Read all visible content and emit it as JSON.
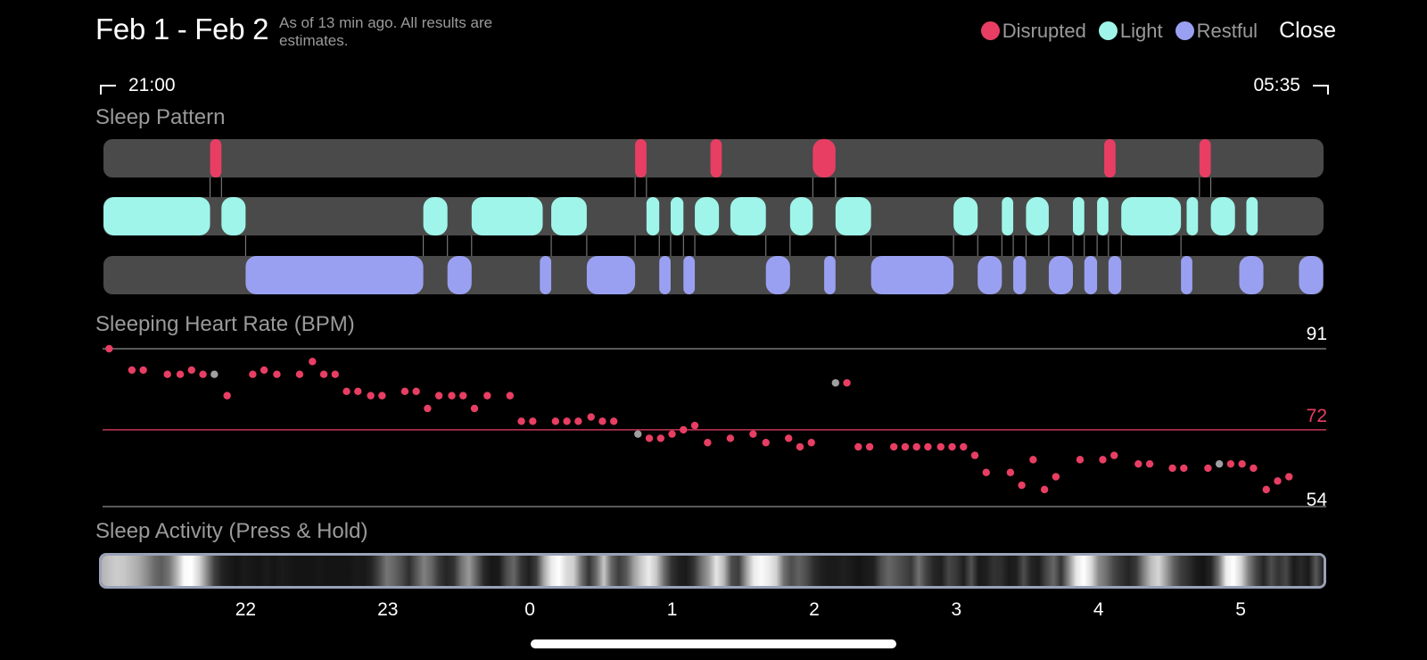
{
  "header": {
    "title": "Feb 1 - Feb 2",
    "subtitle": "As of 13 min ago. All results are estimates.",
    "close_label": "Close"
  },
  "legend": [
    {
      "label": "Disrupted",
      "color": "#e83e63"
    },
    {
      "label": "Light",
      "color": "#9ff5e9"
    },
    {
      "label": "Restful",
      "color": "#9aa0f1"
    }
  ],
  "time_range": {
    "start": "21:00",
    "end": "05:35"
  },
  "sections": {
    "pattern": "Sleep Pattern",
    "heart_rate": "Sleeping Heart Rate (BPM)",
    "activity": "Sleep Activity (Press & Hold)"
  },
  "colors": {
    "track": "#4a4a4a",
    "disrupted": "#e83e63",
    "light": "#9ff5e9",
    "restful": "#9aa0f1",
    "hr_dot": "#e83e63",
    "hr_dot_alt": "#a0a0a0",
    "avg_line": "#e83e63"
  },
  "sleep_pattern": {
    "time_start_h": 21.0,
    "time_end_h": 29.583,
    "disrupted": [
      [
        21.75,
        21.83
      ],
      [
        24.74,
        24.82
      ],
      [
        25.27,
        25.35
      ],
      [
        25.99,
        26.15
      ],
      [
        28.04,
        28.12
      ],
      [
        28.71,
        28.79
      ]
    ],
    "light": [
      [
        21.0,
        21.75
      ],
      [
        21.83,
        22.0
      ],
      [
        23.25,
        23.42
      ],
      [
        23.59,
        24.09
      ],
      [
        24.15,
        24.4
      ],
      [
        24.82,
        24.91
      ],
      [
        24.99,
        25.08
      ],
      [
        25.16,
        25.33
      ],
      [
        25.41,
        25.66
      ],
      [
        25.83,
        25.99
      ],
      [
        26.15,
        26.4
      ],
      [
        26.98,
        27.15
      ],
      [
        27.32,
        27.4
      ],
      [
        27.49,
        27.65
      ],
      [
        27.82,
        27.9
      ],
      [
        27.99,
        28.07
      ],
      [
        28.16,
        28.58
      ],
      [
        28.62,
        28.7
      ],
      [
        28.79,
        28.96
      ],
      [
        29.04,
        29.12
      ]
    ],
    "restful": [
      [
        22.0,
        23.25
      ],
      [
        23.42,
        23.59
      ],
      [
        24.07,
        24.15
      ],
      [
        24.4,
        24.74
      ],
      [
        24.91,
        24.99
      ],
      [
        25.08,
        25.16
      ],
      [
        25.66,
        25.83
      ],
      [
        26.07,
        26.15
      ],
      [
        26.4,
        26.98
      ],
      [
        27.15,
        27.32
      ],
      [
        27.4,
        27.49
      ],
      [
        27.65,
        27.82
      ],
      [
        27.9,
        27.99
      ],
      [
        28.07,
        28.16
      ],
      [
        28.58,
        28.66
      ],
      [
        28.99,
        29.16
      ],
      [
        29.41,
        29.58
      ]
    ]
  },
  "heart_rate": {
    "max": 91,
    "avg": 72,
    "min": 54,
    "max_label": "91",
    "avg_label": "72",
    "min_label": "54",
    "points": [
      [
        21.04,
        91,
        0
      ],
      [
        21.2,
        86,
        0
      ],
      [
        21.28,
        86,
        0
      ],
      [
        21.45,
        85,
        0
      ],
      [
        21.54,
        85,
        0
      ],
      [
        21.62,
        86,
        0
      ],
      [
        21.7,
        85,
        0
      ],
      [
        21.78,
        85,
        1
      ],
      [
        21.87,
        80,
        0
      ],
      [
        22.05,
        85,
        0
      ],
      [
        22.13,
        86,
        0
      ],
      [
        22.22,
        85,
        0
      ],
      [
        22.38,
        85,
        0
      ],
      [
        22.47,
        88,
        0
      ],
      [
        22.55,
        85,
        0
      ],
      [
        22.63,
        85,
        0
      ],
      [
        22.71,
        81,
        0
      ],
      [
        22.79,
        81,
        0
      ],
      [
        22.88,
        80,
        0
      ],
      [
        22.96,
        80,
        0
      ],
      [
        23.12,
        81,
        0
      ],
      [
        23.2,
        81,
        0
      ],
      [
        23.28,
        77,
        0
      ],
      [
        23.36,
        80,
        0
      ],
      [
        23.45,
        80,
        0
      ],
      [
        23.53,
        80,
        0
      ],
      [
        23.61,
        77,
        0
      ],
      [
        23.7,
        80,
        0
      ],
      [
        23.86,
        80,
        0
      ],
      [
        23.94,
        74,
        0
      ],
      [
        24.02,
        74,
        0
      ],
      [
        24.18,
        74,
        0
      ],
      [
        24.26,
        74,
        0
      ],
      [
        24.34,
        74,
        0
      ],
      [
        24.43,
        75,
        0
      ],
      [
        24.51,
        74,
        0
      ],
      [
        24.59,
        74,
        0
      ],
      [
        24.76,
        71,
        1
      ],
      [
        24.84,
        70,
        0
      ],
      [
        24.92,
        70,
        0
      ],
      [
        25.0,
        71,
        0
      ],
      [
        25.08,
        72,
        0
      ],
      [
        25.16,
        73,
        0
      ],
      [
        25.25,
        69,
        0
      ],
      [
        25.41,
        70,
        0
      ],
      [
        25.57,
        71,
        0
      ],
      [
        25.66,
        69,
        0
      ],
      [
        25.82,
        70,
        0
      ],
      [
        25.9,
        68,
        0
      ],
      [
        25.98,
        69,
        0
      ],
      [
        26.15,
        83,
        1
      ],
      [
        26.23,
        83,
        0
      ],
      [
        26.31,
        68,
        0
      ],
      [
        26.39,
        68,
        0
      ],
      [
        26.56,
        68,
        0
      ],
      [
        26.64,
        68,
        0
      ],
      [
        26.72,
        68,
        0
      ],
      [
        26.8,
        68,
        0
      ],
      [
        26.89,
        68,
        0
      ],
      [
        26.97,
        68,
        0
      ],
      [
        27.05,
        68,
        0
      ],
      [
        27.13,
        66,
        0
      ],
      [
        27.21,
        62,
        0
      ],
      [
        27.38,
        62,
        0
      ],
      [
        27.46,
        59,
        0
      ],
      [
        27.54,
        65,
        0
      ],
      [
        27.62,
        58,
        0
      ],
      [
        27.7,
        61,
        0
      ],
      [
        27.87,
        65,
        0
      ],
      [
        28.03,
        65,
        0
      ],
      [
        28.11,
        66,
        0
      ],
      [
        28.28,
        64,
        0
      ],
      [
        28.36,
        64,
        0
      ],
      [
        28.52,
        63,
        0
      ],
      [
        28.6,
        63,
        0
      ],
      [
        28.77,
        63,
        0
      ],
      [
        28.85,
        64,
        1
      ],
      [
        28.93,
        64,
        0
      ],
      [
        29.01,
        64,
        0
      ],
      [
        29.09,
        63,
        0
      ],
      [
        29.18,
        58,
        0
      ],
      [
        29.26,
        60,
        0
      ],
      [
        29.34,
        61,
        0
      ]
    ]
  },
  "activity_strip": {
    "levels": [
      0.7,
      0.76,
      0.8,
      0.78,
      0.72,
      0.66,
      0.55,
      0.42,
      0.36,
      0.46,
      0.7,
      0.98,
      1.0,
      0.84,
      0.55,
      0.26,
      0.14,
      0.1,
      0.08,
      0.1,
      0.09,
      0.08,
      0.1,
      0.08,
      0.1,
      0.09,
      0.08,
      0.08,
      0.08,
      0.09,
      0.08,
      0.08,
      0.08,
      0.08,
      0.1,
      0.09,
      0.14,
      0.28,
      0.46,
      0.4,
      0.3,
      0.18,
      0.34,
      0.5,
      0.4,
      0.22,
      0.14,
      0.2,
      0.45,
      0.6,
      0.38,
      0.16,
      0.09,
      0.1,
      0.3,
      0.4,
      0.2,
      0.12,
      0.24,
      0.66,
      0.92,
      1.0,
      0.86,
      0.8,
      0.44,
      0.2,
      0.42,
      0.78,
      0.4,
      0.24,
      0.35,
      0.62,
      0.8,
      0.92,
      0.78,
      0.44,
      0.2,
      0.12,
      0.1,
      0.2,
      0.44,
      0.62,
      0.9,
      0.72,
      0.3,
      0.24,
      0.62,
      0.92,
      0.98,
      0.92,
      0.82,
      0.44,
      0.3,
      0.38,
      0.3,
      0.18,
      0.12,
      0.1,
      0.1,
      0.12,
      0.1,
      0.08,
      0.1,
      0.12,
      0.3,
      0.4,
      0.34,
      0.28,
      0.22,
      0.44,
      0.26,
      0.15,
      0.12,
      0.28,
      0.22,
      0.12,
      0.32,
      0.1,
      0.12,
      0.2,
      0.18,
      0.1,
      0.12,
      0.3,
      0.14,
      0.11,
      0.28,
      0.4,
      0.2,
      0.54,
      0.9,
      1.0,
      0.86,
      0.54,
      0.44,
      0.28,
      0.2,
      0.14,
      0.22,
      0.5,
      0.74,
      0.84,
      0.62,
      0.38,
      0.24,
      0.18,
      0.1,
      0.08,
      0.14,
      0.44,
      0.92,
      1.0,
      0.84,
      0.5,
      0.28,
      0.14,
      0.3,
      0.2,
      0.28,
      0.1,
      0.16,
      0.1,
      0.34,
      0.12
    ]
  },
  "axis": {
    "ticks": [
      {
        "label": "22",
        "t": 22
      },
      {
        "label": "23",
        "t": 23
      },
      {
        "label": "0",
        "t": 24
      },
      {
        "label": "1",
        "t": 25
      },
      {
        "label": "2",
        "t": 26
      },
      {
        "label": "3",
        "t": 27
      },
      {
        "label": "4",
        "t": 28
      },
      {
        "label": "5",
        "t": 29
      }
    ]
  }
}
